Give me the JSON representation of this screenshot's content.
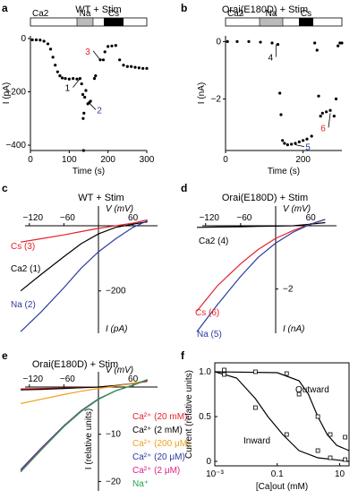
{
  "chart_data": [
    {
      "panel": "a",
      "type": "scatter",
      "title": "WT + Stim",
      "solution_bar": [
        "Ca2",
        "Na",
        "Cs"
      ],
      "xlabel": "Time (s)",
      "ylabel": "I (pA)",
      "xlim": [
        0,
        300
      ],
      "ylim": [
        -420,
        10
      ],
      "xticks": [
        "0",
        "100",
        "200",
        "300"
      ],
      "yticks": [
        "0",
        "−200",
        "−400"
      ],
      "points": [
        [
          5,
          -5
        ],
        [
          15,
          -5
        ],
        [
          25,
          -6
        ],
        [
          35,
          -10
        ],
        [
          45,
          -20
        ],
        [
          52,
          -40
        ],
        [
          58,
          -70
        ],
        [
          64,
          -100
        ],
        [
          70,
          -125
        ],
        [
          76,
          -140
        ],
        [
          82,
          -148
        ],
        [
          90,
          -150
        ],
        [
          100,
          -152
        ],
        [
          110,
          -150
        ],
        [
          120,
          -152
        ],
        [
          128,
          -150
        ],
        [
          132,
          -170
        ],
        [
          135,
          -210
        ],
        [
          136,
          -300
        ],
        [
          137,
          -420
        ],
        [
          138,
          -280
        ],
        [
          140,
          -220
        ],
        [
          143,
          -195
        ],
        [
          148,
          -245
        ],
        [
          152,
          -240
        ],
        [
          155,
          -235
        ],
        [
          165,
          -150
        ],
        [
          168,
          -140
        ],
        [
          180,
          -80
        ],
        [
          188,
          -80
        ],
        [
          192,
          -50
        ],
        [
          200,
          -30
        ],
        [
          210,
          -28
        ],
        [
          220,
          -26
        ],
        [
          230,
          -80
        ],
        [
          240,
          -100
        ],
        [
          250,
          -105
        ],
        [
          260,
          -105
        ],
        [
          270,
          -108
        ],
        [
          280,
          -110
        ],
        [
          290,
          -112
        ],
        [
          300,
          -112
        ]
      ],
      "annotations": [
        {
          "text": "1",
          "x": 128,
          "y": -150
        },
        {
          "text": "2",
          "x": 150,
          "y": -240
        },
        {
          "text": "3",
          "x": 180,
          "y": -80
        }
      ]
    },
    {
      "panel": "b",
      "type": "scatter",
      "title": "Orai(E180D) + Stim",
      "solution_bar": [
        "Ca2",
        "Na",
        "Cs"
      ],
      "xlabel": "Time (s)",
      "ylabel": "I (nA)",
      "xlim": [
        0,
        300
      ],
      "ylim": [
        -3.8,
        0.2
      ],
      "xticks": [
        "0",
        "200"
      ],
      "yticks": [
        "0",
        "−2"
      ],
      "points": [
        [
          5,
          0
        ],
        [
          30,
          0
        ],
        [
          60,
          0
        ],
        [
          90,
          -0.02
        ],
        [
          120,
          -0.05
        ],
        [
          135,
          -0.1
        ],
        [
          140,
          -1.8
        ],
        [
          143,
          -2.55
        ],
        [
          147,
          -3.45
        ],
        [
          152,
          -3.55
        ],
        [
          160,
          -3.6
        ],
        [
          170,
          -3.58
        ],
        [
          180,
          -3.55
        ],
        [
          190,
          -3.5
        ],
        [
          200,
          -3.45
        ],
        [
          210,
          -3.4
        ],
        [
          222,
          -3.3
        ],
        [
          230,
          -0.05
        ],
        [
          236,
          -0.3
        ],
        [
          240,
          -1.9
        ],
        [
          245,
          -2.6
        ],
        [
          250,
          -2.5
        ],
        [
          260,
          -2.45
        ],
        [
          270,
          -2.4
        ],
        [
          280,
          -2.6
        ],
        [
          285,
          -2.0
        ],
        [
          290,
          -0.15
        ],
        [
          295,
          -0.05
        ],
        [
          300,
          -0.05
        ]
      ],
      "annotations": [
        {
          "text": "4",
          "x": 130,
          "y": -0.1
        },
        {
          "text": "5",
          "x": 180,
          "y": -3.6
        },
        {
          "text": "6",
          "x": 270,
          "y": -2.5
        }
      ]
    },
    {
      "panel": "c",
      "type": "line",
      "title": "WT + Stim",
      "xlabel": "V (mV)",
      "ylabel": "I (pA)",
      "xlim": [
        -140,
        90
      ],
      "ylim": [
        -330,
        25
      ],
      "xticks": [
        "−120",
        "−60",
        "60"
      ],
      "yticks": [
        "−200"
      ],
      "series": [
        {
          "name": "Cs (3)",
          "color": "#e8202a",
          "x": [
            -135,
            -100,
            -60,
            -30,
            0,
            30,
            60,
            85
          ],
          "y": [
            -50,
            -40,
            -28,
            -18,
            -8,
            0,
            8,
            18
          ]
        },
        {
          "name": "Ca2 (1)",
          "color": "#000000",
          "x": [
            -135,
            -100,
            -60,
            -30,
            0,
            30,
            60,
            85
          ],
          "y": [
            -200,
            -150,
            -95,
            -55,
            -25,
            -5,
            5,
            12
          ]
        },
        {
          "name": "Na (2)",
          "color": "#2b3a9e",
          "x": [
            -135,
            -100,
            -60,
            -30,
            0,
            30,
            60,
            85
          ],
          "y": [
            -325,
            -265,
            -190,
            -130,
            -80,
            -40,
            -5,
            15
          ]
        }
      ]
    },
    {
      "panel": "d",
      "type": "line",
      "title": "Orai(E180D) + Stim",
      "xlabel": "V (mV)",
      "ylabel": "I (nA)",
      "xlim": [
        -140,
        90
      ],
      "ylim": [
        -3.4,
        0.3
      ],
      "xticks": [
        "−120",
        "−60",
        "60"
      ],
      "yticks": [
        "−2"
      ],
      "series": [
        {
          "name": "Ca2 (4)",
          "color": "#000000",
          "x": [
            -135,
            -100,
            -60,
            -30,
            0,
            30,
            60,
            85
          ],
          "y": [
            -0.05,
            -0.04,
            -0.03,
            -0.02,
            -0.01,
            0,
            0.05,
            0.1
          ]
        },
        {
          "name": "Cs (6)",
          "color": "#e8202a",
          "x": [
            -135,
            -100,
            -60,
            -30,
            0,
            30,
            60,
            85
          ],
          "y": [
            -2.7,
            -1.9,
            -1.2,
            -0.75,
            -0.4,
            -0.15,
            0.05,
            0.2
          ]
        },
        {
          "name": "Na (5)",
          "color": "#2b3a9e",
          "x": [
            -135,
            -100,
            -60,
            -30,
            0,
            30,
            60,
            85
          ],
          "y": [
            -3.35,
            -2.5,
            -1.6,
            -1.0,
            -0.55,
            -0.2,
            0.05,
            0.2
          ]
        }
      ]
    },
    {
      "panel": "e",
      "type": "line",
      "title": "Orai(E180D) + Stim",
      "xlabel": "V (mV)",
      "ylabel": "I (relative units)",
      "xlim": [
        -140,
        90
      ],
      "ylim": [
        -22,
        2
      ],
      "xticks": [
        "−120",
        "−60",
        "60"
      ],
      "yticks": [
        "−10",
        "−20"
      ],
      "series": [
        {
          "name": "Ca²⁺ (20 mM)",
          "color": "#e8202a",
          "x": [
            -135,
            -100,
            -60,
            -30,
            0,
            30,
            60,
            85
          ],
          "y": [
            -0.4,
            -0.3,
            -0.2,
            -0.1,
            0,
            0.3,
            0.7,
            1.2
          ]
        },
        {
          "name": "Ca²⁺ (2 mM)",
          "color": "#000000",
          "x": [
            -135,
            -100,
            -60,
            -30,
            0,
            30,
            60,
            85
          ],
          "y": [
            -0.6,
            -0.5,
            -0.3,
            -0.15,
            0,
            0.3,
            0.8,
            1.3
          ]
        },
        {
          "name": "Ca²⁺ (200 μM)",
          "color": "#f0a020",
          "x": [
            -135,
            -100,
            -60,
            -30,
            0,
            30,
            60,
            85
          ],
          "y": [
            -3.5,
            -2.6,
            -1.6,
            -0.9,
            -0.3,
            0.2,
            0.8,
            1.4
          ]
        },
        {
          "name": "Ca²⁺ (20 μM)",
          "color": "#2b3a9e",
          "x": [
            -135,
            -100,
            -60,
            -30,
            0,
            30,
            60,
            85
          ],
          "y": [
            -17.5,
            -13,
            -8.2,
            -5,
            -2.5,
            -0.8,
            0.4,
            1.5
          ]
        },
        {
          "name": "Ca²⁺ (2 μM)",
          "color": "#e0208a",
          "x": [
            -135,
            -100,
            -60,
            -30,
            0,
            30,
            60,
            85
          ],
          "y": [
            -17.8,
            -13.2,
            -8.3,
            -5.1,
            -2.6,
            -0.8,
            0.4,
            1.5
          ]
        },
        {
          "name": "Na⁺",
          "color": "#20a050",
          "x": [
            -135,
            -100,
            -60,
            -30,
            0,
            30,
            60,
            85
          ],
          "y": [
            -18,
            -13.4,
            -8.4,
            -5.2,
            -2.6,
            -0.8,
            0.4,
            1.6
          ]
        }
      ]
    },
    {
      "panel": "f",
      "type": "scatter",
      "xlabel": "[Ca]out (mM)",
      "ylabel": "Current (relative units)",
      "xscale": "log",
      "xlim": [
        0.001,
        20
      ],
      "ylim": [
        -0.05,
        1.1
      ],
      "xticks": [
        "10⁻³",
        "0.1",
        "10"
      ],
      "yticks": [
        "0",
        "0.5",
        "1.0"
      ],
      "curve_labels": [
        "Outward",
        "Inward"
      ],
      "series": [
        {
          "name": "Outward",
          "x": [
            0.002,
            0.02,
            0.2,
            0.5,
            2,
            5,
            15
          ],
          "y": [
            1.02,
            1.0,
            0.98,
            0.75,
            0.5,
            0.3,
            0.27
          ],
          "fit": [
            [
              0.001,
              1.0
            ],
            [
              0.1,
              0.99
            ],
            [
              0.5,
              0.9
            ],
            [
              1,
              0.75
            ],
            [
              2,
              0.5
            ],
            [
              4,
              0.3
            ],
            [
              8,
              0.18
            ],
            [
              20,
              0.12
            ]
          ]
        },
        {
          "name": "Inward",
          "x": [
            0.002,
            0.02,
            0.2,
            2,
            5,
            15
          ],
          "y": [
            0.97,
            0.6,
            0.3,
            0.12,
            0.04,
            0.02
          ],
          "fit": [
            [
              0.001,
              1.0
            ],
            [
              0.005,
              0.93
            ],
            [
              0.02,
              0.7
            ],
            [
              0.05,
              0.5
            ],
            [
              0.15,
              0.3
            ],
            [
              0.5,
              0.12
            ],
            [
              2,
              0.04
            ],
            [
              20,
              0.0
            ]
          ]
        }
      ]
    }
  ]
}
